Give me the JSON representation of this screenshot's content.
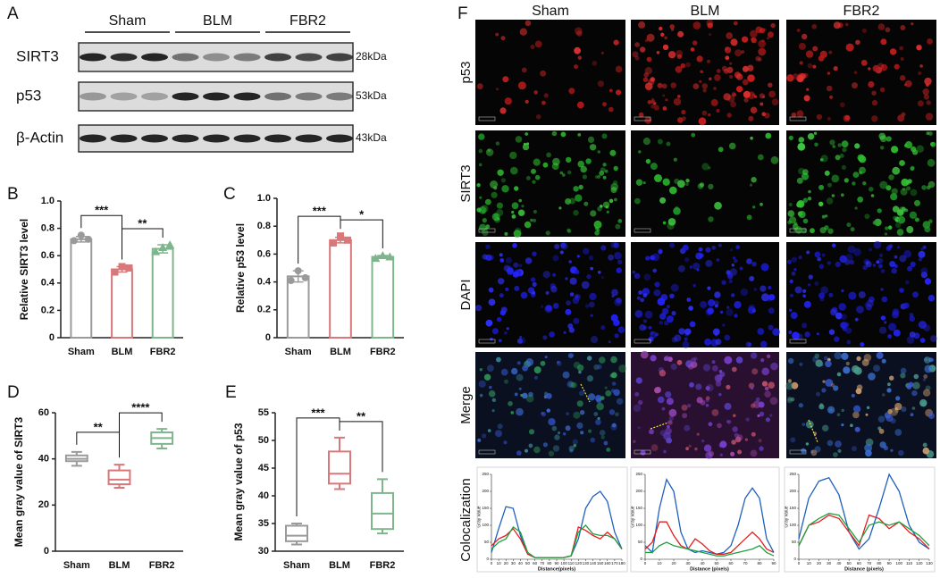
{
  "figure": {
    "panel_labels": [
      "A",
      "B",
      "C",
      "D",
      "E",
      "F"
    ]
  },
  "blot": {
    "groups": [
      "Sham",
      "BLM",
      "FBR2"
    ],
    "rows": [
      "SIRT3",
      "p53",
      "β-Actin"
    ],
    "sizes": [
      "28kDa",
      "53kDa",
      "43kDa"
    ]
  },
  "microscopy": {
    "columns": [
      "Sham",
      "BLM",
      "FBR2"
    ],
    "rows": [
      "p53",
      "SIRT3",
      "DAPI",
      "Merge"
    ],
    "coloc_label": "Colocalization"
  },
  "chart_data": [
    {
      "type": "bar",
      "ylabel": "Relative SIRT3 level",
      "categories": [
        "Sham",
        "BLM",
        "FBR2"
      ],
      "values": [
        0.72,
        0.5,
        0.65
      ],
      "errors": [
        0.02,
        0.02,
        0.03
      ],
      "points": [
        [
          0.71,
          0.75,
          0.72
        ],
        [
          0.48,
          0.52,
          0.51
        ],
        [
          0.63,
          0.66,
          0.68
        ]
      ],
      "colors": [
        "#9a9a9a",
        "#d9787a",
        "#7fb58d"
      ],
      "ylim": [
        0,
        1
      ],
      "yticks": [
        0,
        0.2,
        0.4,
        0.6,
        0.8,
        {
          "value": 1,
          "label": "1.0"
        }
      ],
      "annotations": [
        "***",
        "**"
      ]
    },
    {
      "type": "bar",
      "ylabel": "Relative p53 level",
      "categories": [
        "Sham",
        "BLM",
        "FBR2"
      ],
      "values": [
        0.44,
        0.7,
        0.58
      ],
      "errors": [
        0.04,
        0.02,
        0.01
      ],
      "points": [
        [
          0.41,
          0.48,
          0.43
        ],
        [
          0.68,
          0.73,
          0.7
        ],
        [
          0.57,
          0.59,
          0.58
        ]
      ],
      "colors": [
        "#9a9a9a",
        "#d9787a",
        "#7fb58d"
      ],
      "ylim": [
        0,
        1
      ],
      "yticks": [
        0,
        0.2,
        0.4,
        0.6,
        0.8,
        {
          "value": 1,
          "label": "1.0"
        }
      ],
      "annotations": [
        "***",
        "*"
      ]
    },
    {
      "type": "box",
      "ylabel": "Mean gray value of SIRT3",
      "categories": [
        "Sham",
        "BLM",
        "FBR2"
      ],
      "boxes": [
        {
          "min": 37,
          "q1": 39,
          "median": 40,
          "q3": 41.5,
          "max": 43
        },
        {
          "min": 27.5,
          "q1": 29,
          "median": 31,
          "q3": 35,
          "max": 37.5
        },
        {
          "min": 44.5,
          "q1": 46.5,
          "median": 49,
          "q3": 51.5,
          "max": 53
        }
      ],
      "colors": [
        "#9a9a9a",
        "#d9787a",
        "#7fb58d"
      ],
      "ylim": [
        0,
        60
      ],
      "yticks": [
        0,
        20,
        40,
        60
      ],
      "annotations": [
        "**",
        "****"
      ]
    },
    {
      "type": "box",
      "ylabel": "Mean gray value of p53",
      "categories": [
        "Sham",
        "BLM",
        "FBR2"
      ],
      "boxes": [
        {
          "min": 31.2,
          "q1": 31.8,
          "median": 32.8,
          "q3": 34.6,
          "max": 35
        },
        {
          "min": 41.2,
          "q1": 42.2,
          "median": 44,
          "q3": 48,
          "max": 50.5
        },
        {
          "min": 33.2,
          "q1": 34,
          "median": 36.8,
          "q3": 40.5,
          "max": 43
        }
      ],
      "colors": [
        "#9a9a9a",
        "#d9787a",
        "#7fb58d"
      ],
      "ylim": [
        30,
        55
      ],
      "yticks": [
        30,
        35,
        40,
        45,
        50,
        55
      ],
      "annotations": [
        "***",
        "**"
      ]
    },
    {
      "type": "line",
      "xlabel": "Distance(pixels)",
      "ylabel": "Gray value",
      "x": [
        0,
        10,
        20,
        30,
        40,
        50,
        60,
        70,
        80,
        90,
        100,
        110,
        120,
        130,
        140,
        150,
        160,
        170,
        180
      ],
      "series": [
        {
          "color": "#1f5fbf",
          "values": [
            20,
            90,
            155,
            150,
            70,
            15,
            5,
            5,
            5,
            5,
            5,
            10,
            60,
            150,
            185,
            200,
            170,
            80,
            30
          ]
        },
        {
          "color": "#e02020",
          "values": [
            40,
            60,
            70,
            90,
            60,
            15,
            5,
            5,
            5,
            5,
            5,
            10,
            95,
            85,
            70,
            60,
            80,
            60,
            30
          ]
        },
        {
          "color": "#20a040",
          "values": [
            30,
            50,
            60,
            95,
            80,
            20,
            5,
            5,
            5,
            5,
            5,
            10,
            80,
            100,
            75,
            70,
            70,
            60,
            30
          ]
        }
      ],
      "xlim": [
        0,
        180
      ],
      "xticks": [
        0,
        10,
        20,
        30,
        40,
        50,
        60,
        70,
        80,
        90,
        100,
        110,
        120,
        130,
        140,
        150,
        160,
        170,
        180
      ],
      "ylim": [
        0,
        250
      ],
      "yticks": [
        0,
        50,
        100,
        150,
        200,
        250
      ]
    },
    {
      "type": "line",
      "xlabel": "Distance (pixels)",
      "ylabel": "Gray value",
      "x": [
        0,
        5,
        10,
        15,
        20,
        25,
        30,
        35,
        40,
        45,
        50,
        55,
        60,
        65,
        70,
        75,
        80,
        85,
        90
      ],
      "series": [
        {
          "color": "#1f5fbf",
          "values": [
            40,
            20,
            150,
            235,
            200,
            80,
            30,
            20,
            25,
            20,
            15,
            20,
            40,
            100,
            180,
            210,
            180,
            60,
            20
          ]
        },
        {
          "color": "#e02020",
          "values": [
            30,
            50,
            110,
            110,
            70,
            40,
            30,
            60,
            45,
            25,
            15,
            15,
            20,
            40,
            60,
            80,
            60,
            30,
            20
          ]
        },
        {
          "color": "#20a040",
          "values": [
            20,
            20,
            40,
            50,
            40,
            35,
            30,
            25,
            20,
            15,
            10,
            10,
            15,
            20,
            25,
            30,
            40,
            20,
            10
          ]
        }
      ],
      "xlim": [
        0,
        90
      ],
      "xticks": [
        0,
        10,
        20,
        30,
        40,
        50,
        60,
        70,
        80,
        90
      ],
      "ylim": [
        0,
        250
      ],
      "yticks": [
        0,
        50,
        100,
        150,
        200,
        250
      ]
    },
    {
      "type": "line",
      "xlabel": "Distance (pixels)",
      "ylabel": "Gray value",
      "x": [
        0,
        10,
        20,
        30,
        40,
        50,
        60,
        70,
        80,
        90,
        100,
        110,
        120,
        130
      ],
      "series": [
        {
          "color": "#1f5fbf",
          "values": [
            60,
            180,
            230,
            240,
            190,
            80,
            30,
            60,
            150,
            250,
            200,
            100,
            50,
            30
          ]
        },
        {
          "color": "#e02020",
          "values": [
            40,
            100,
            110,
            130,
            120,
            80,
            40,
            130,
            120,
            90,
            110,
            80,
            60,
            30
          ]
        },
        {
          "color": "#20a040",
          "values": [
            40,
            100,
            120,
            135,
            130,
            90,
            50,
            100,
            110,
            100,
            110,
            90,
            70,
            40
          ]
        }
      ],
      "xlim": [
        0,
        130
      ],
      "xticks": [
        0,
        10,
        20,
        30,
        40,
        50,
        60,
        70,
        80,
        90,
        100,
        110,
        120,
        130
      ],
      "ylim": [
        0,
        250
      ],
      "yticks": [
        0,
        50,
        100,
        150,
        200,
        250
      ]
    }
  ]
}
